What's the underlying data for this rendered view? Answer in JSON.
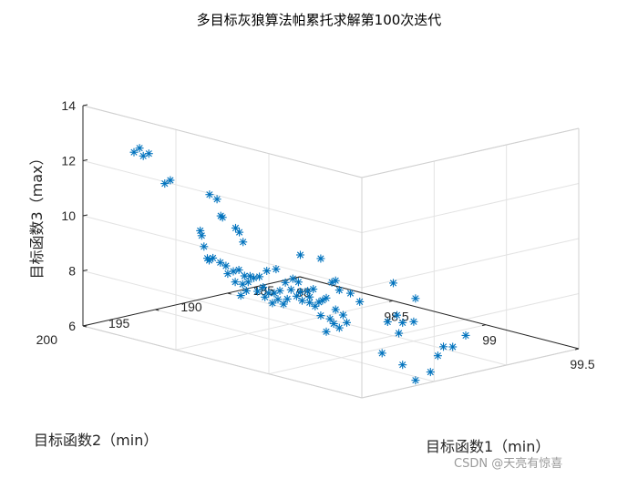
{
  "watermark": "CSDN @天亮有惊喜",
  "chart_data": {
    "type": "scatter3d",
    "title": "多目标灰狼算法帕累托求解第100次迭代",
    "xlabel": "目标函数1（min）",
    "ylabel": "目标函数2（min）",
    "zlabel": "目标函数3（max）",
    "xlim": [
      98,
      99.5
    ],
    "ylim": [
      185,
      200
    ],
    "zlim": [
      6,
      14
    ],
    "xticks": [
      {
        "v": 98,
        "t": "98"
      },
      {
        "v": 98.5,
        "t": "98.5"
      },
      {
        "v": 99,
        "t": "99"
      },
      {
        "v": 99.5,
        "t": "99.5"
      }
    ],
    "yticks": [
      {
        "v": 185,
        "t": "185"
      },
      {
        "v": 190,
        "t": "190"
      },
      {
        "v": 195,
        "t": "195"
      },
      {
        "v": 200,
        "t": "200"
      }
    ],
    "zticks": [
      {
        "v": 6,
        "t": "6"
      },
      {
        "v": 8,
        "t": "8"
      },
      {
        "v": 10,
        "t": "10"
      },
      {
        "v": 12,
        "t": "12"
      },
      {
        "v": 14,
        "t": "14"
      }
    ],
    "grid": true,
    "marker": "*",
    "color": "#0072BD",
    "points": [
      [
        98.08,
        197.5,
        12.15
      ],
      [
        98.11,
        197.5,
        12.35
      ],
      [
        98.16,
        197.5,
        12.24
      ],
      [
        98.13,
        197.5,
        12.1
      ],
      [
        98.23,
        197.3,
        11.25
      ],
      [
        98.26,
        197.3,
        11.42
      ],
      [
        98.37,
        196.0,
        10.94
      ],
      [
        98.41,
        196.0,
        10.84
      ],
      [
        98.43,
        196.0,
        10.27
      ],
      [
        98.44,
        196.0,
        10.23
      ],
      [
        98.51,
        196.0,
        9.97
      ],
      [
        98.53,
        196.0,
        9.85
      ],
      [
        98.55,
        196.0,
        9.53
      ],
      [
        98.32,
        196.0,
        9.54
      ],
      [
        98.34,
        196.0,
        9.0
      ],
      [
        98.25,
        195.0,
        9.12
      ],
      [
        98.28,
        195.0,
        8.35
      ],
      [
        98.29,
        195.0,
        8.29
      ],
      [
        98.31,
        195.0,
        8.41
      ],
      [
        98.35,
        195.0,
        8.32
      ],
      [
        98.38,
        195.0,
        8.25
      ],
      [
        98.42,
        195.0,
        8.12
      ],
      [
        98.45,
        195.0,
        8.22
      ],
      [
        98.48,
        195.0,
        8.06
      ],
      [
        98.51,
        195.0,
        8.1
      ],
      [
        98.53,
        195.0,
        8.07
      ],
      [
        98.56,
        195.0,
        8.17
      ],
      [
        98.39,
        195.0,
        7.98
      ],
      [
        98.43,
        195.0,
        7.75
      ],
      [
        98.47,
        195.0,
        7.74
      ],
      [
        98.5,
        195.0,
        7.87
      ],
      [
        98.55,
        195.0,
        7.62
      ],
      [
        98.59,
        195.0,
        7.48
      ],
      [
        98.61,
        195.0,
        7.66
      ],
      [
        98.58,
        195.0,
        7.82
      ],
      [
        98.49,
        195.0,
        7.53
      ],
      [
        98.46,
        195.0,
        7.31
      ],
      [
        98.63,
        195.0,
        7.33
      ],
      [
        98.66,
        195.0,
        7.52
      ],
      [
        98.69,
        195.0,
        7.4
      ],
      [
        98.71,
        195.0,
        7.62
      ],
      [
        98.64,
        195.0,
        7.71
      ],
      [
        98.67,
        195.0,
        7.85
      ],
      [
        98.73,
        195.0,
        7.99
      ],
      [
        98.76,
        195.0,
        7.81
      ],
      [
        98.79,
        195.0,
        7.7
      ],
      [
        98.78,
        195.0,
        8.0
      ],
      [
        98.7,
        195.0,
        8.2
      ],
      [
        98.74,
        195.0,
        8.41
      ],
      [
        98.77,
        195.0,
        8.34
      ],
      [
        98.82,
        195.0,
        8.1
      ],
      [
        98.83,
        195.0,
        7.9
      ],
      [
        98.85,
        195.0,
        8.22
      ],
      [
        98.83,
        195.0,
        7.7
      ],
      [
        98.86,
        195.0,
        7.62
      ],
      [
        98.88,
        195.0,
        7.8
      ],
      [
        98.9,
        195.0,
        7.9
      ],
      [
        98.92,
        195.0,
        8.02
      ],
      [
        98.89,
        195.0,
        7.33
      ],
      [
        98.94,
        195.0,
        7.3
      ],
      [
        98.96,
        195.0,
        7.16
      ],
      [
        98.99,
        195.0,
        7.06
      ],
      [
        98.92,
        195.0,
        6.8
      ],
      [
        99.03,
        195.0,
        7.32
      ],
      [
        99.01,
        195.0,
        7.56
      ],
      [
        98.97,
        195.0,
        7.69
      ],
      [
        98.99,
        195.0,
        8.43
      ],
      [
        98.95,
        195.0,
        8.64
      ],
      [
        98.97,
        195.0,
        8.74
      ],
      [
        99.05,
        195.0,
        8.42
      ],
      [
        99.1,
        195.0,
        8.2
      ],
      [
        99.25,
        195.0,
        7.73
      ],
      [
        99.3,
        195.0,
        8.06
      ],
      [
        99.33,
        195.0,
        7.84
      ],
      [
        99.39,
        195.0,
        7.98
      ],
      [
        99.31,
        195.0,
        7.42
      ],
      [
        99.22,
        195.0,
        6.54
      ],
      [
        99.33,
        195.0,
        6.31
      ],
      [
        99.4,
        195.0,
        5.87
      ],
      [
        99.48,
        195.0,
        6.31
      ],
      [
        99.28,
        195.0,
        9.19
      ],
      [
        99.4,
        195.0,
        8.84
      ],
      [
        98.89,
        195.0,
        9.4
      ],
      [
        98.78,
        195.0,
        9.34
      ],
      [
        99.52,
        195.0,
        6.97
      ],
      [
        99.55,
        195.0,
        7.35
      ],
      [
        99.6,
        195.0,
        7.43
      ],
      [
        99.67,
        195.0,
        7.97
      ],
      [
        98.65,
        195.0,
        8.6
      ],
      [
        98.6,
        195.0,
        8.45
      ]
    ]
  }
}
